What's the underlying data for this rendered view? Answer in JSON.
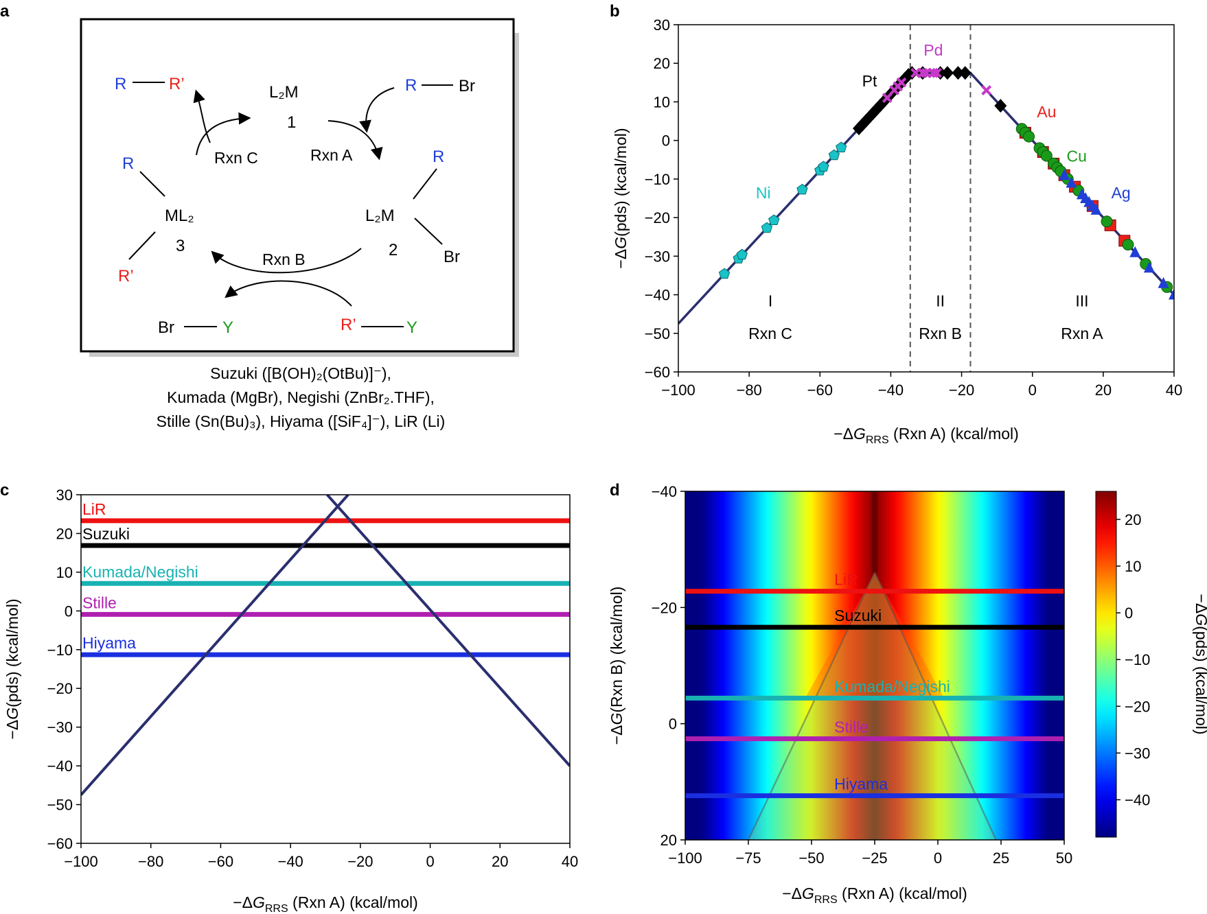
{
  "colors": {
    "R": "#1f3fd6",
    "Rp": "#e8201a",
    "Y": "#1a9a1a",
    "Br": "#000000",
    "line": "#2b2f6e",
    "Ni": "#19c3c8",
    "Pt": "#000000",
    "Pd": "#c53ac6",
    "Au": "#e8201a",
    "Cu": "#1a9a1a",
    "Ag": "#1f3fd6",
    "LiR": "#ee1111",
    "Suzuki": "#000000",
    "Kumada/Negishi": "#18b2b2",
    "Stille": "#b020b0",
    "Hiyama": "#1a2fe0"
  },
  "panels": {
    "a": {
      "label": "a",
      "scheme": {
        "L2M": "L₂M",
        "one": "1",
        "two": "2",
        "three": "3",
        "ML2": "ML₂",
        "R": "R",
        "Rp": "R’",
        "Br": "Br",
        "Y": "Y",
        "rxnA": "Rxn A",
        "rxnB": "Rxn B",
        "rxnC": "Rxn C"
      },
      "caption": [
        "Suzuki ([B(OH)₂(OtBu)]⁻),",
        "Kumada (MgBr), Negishi (ZnBr₂.THF),",
        "Stille (Sn(Bu)₃), Hiyama ([SiF₄]⁻), LiR (Li)"
      ]
    },
    "b": {
      "label": "b"
    },
    "c": {
      "label": "c"
    },
    "d": {
      "label": "d"
    }
  },
  "chart_data": [
    {
      "id": "b",
      "type": "scatter",
      "xlabel": "−ΔG_RRS (Rxn A) (kcal/mol)",
      "ylabel": "−ΔG(pds) (kcal/mol)",
      "xlim": [
        -100,
        40
      ],
      "ylim": [
        -60,
        30
      ],
      "xticks": [
        -100,
        -80,
        -60,
        -40,
        -20,
        0,
        20,
        40
      ],
      "yticks": [
        -60,
        -50,
        -40,
        -30,
        -20,
        -10,
        0,
        10,
        20,
        30
      ],
      "volcano": {
        "x": [
          -100,
          -34.5,
          -17.5,
          40
        ],
        "y": [
          -47.5,
          17.5,
          17.5,
          -40
        ]
      },
      "boundaries": [
        -34.5,
        -17.5
      ],
      "regions": [
        {
          "roman": "I",
          "rxn": "Rxn C",
          "x": -74
        },
        {
          "roman": "II",
          "rxn": "Rxn B",
          "x": -26
        },
        {
          "roman": "III",
          "rxn": "Rxn A",
          "x": 14
        }
      ],
      "series": [
        {
          "name": "Ni",
          "marker": "pentagon",
          "x": [
            -87,
            -83,
            -82,
            -75,
            -73,
            -65,
            -60,
            -59,
            -56,
            -54
          ],
          "label_at": [
            -76,
            -15
          ]
        },
        {
          "name": "Pt",
          "marker": "diamond",
          "x": [
            -49,
            -48,
            -47,
            -46,
            -45,
            -44,
            -43,
            -42,
            -40,
            -38,
            -37,
            -36,
            -35,
            -34,
            -31,
            -26,
            -24,
            -21,
            -19,
            -9
          ],
          "label_at": [
            -46,
            14
          ]
        },
        {
          "name": "Pd",
          "marker": "cross",
          "x": [
            -41,
            -39,
            -38,
            -37,
            -33,
            -31,
            -30,
            -28,
            -27,
            -13
          ],
          "label_at": [
            -28,
            22
          ]
        },
        {
          "name": "Au",
          "marker": "square",
          "x": [
            -2,
            3,
            6,
            9,
            12,
            17,
            22,
            26
          ],
          "label_at": [
            4,
            6
          ]
        },
        {
          "name": "Cu",
          "marker": "circle",
          "x": [
            -3,
            -2,
            -1,
            2,
            3,
            4,
            6,
            7,
            8,
            10,
            13,
            21,
            27,
            32,
            38
          ],
          "label_at": [
            12.5,
            -5.5
          ]
        },
        {
          "name": "Ag",
          "marker": "triangle",
          "x": [
            9,
            11,
            14,
            15,
            16,
            17,
            18,
            29,
            33,
            37,
            40
          ],
          "label_at": [
            25,
            -15
          ]
        }
      ]
    },
    {
      "id": "c",
      "type": "line",
      "xlabel": "−ΔG_RRS (Rxn A) (kcal/mol)",
      "ylabel": "−ΔG(pds) (kcal/mol)",
      "xlim": [
        -100,
        40
      ],
      "ylim": [
        -60,
        30
      ],
      "xticks": [
        -100,
        -80,
        -60,
        -40,
        -20,
        0,
        20,
        40
      ],
      "yticks": [
        -60,
        -50,
        -40,
        -30,
        -20,
        -10,
        0,
        10,
        20,
        30
      ],
      "lines": [
        {
          "name": "Rxn C",
          "x": [
            -100,
            -23.5
          ],
          "y": [
            -47.5,
            30
          ]
        },
        {
          "name": "Rxn A",
          "x": [
            -29.5,
            40
          ],
          "y": [
            30,
            -40
          ]
        }
      ],
      "series": [
        {
          "name": "LiR",
          "y": 23.3
        },
        {
          "name": "Suzuki",
          "y": 16.9
        },
        {
          "name": "Kumada/Negishi",
          "y": 7.1
        },
        {
          "name": "Stille",
          "y": -0.9
        },
        {
          "name": "Hiyama",
          "y": -11.3
        }
      ]
    },
    {
      "id": "d",
      "type": "heatmap",
      "xlabel": "−ΔG_RRS (Rxn A) (kcal/mol)",
      "ylabel": "−ΔG(Rxn B) (kcal/mol)",
      "colorbar_label": "−ΔG(pds) (kcal/mol)",
      "xlim": [
        -100,
        50
      ],
      "ylim": [
        20,
        -40
      ],
      "xticks": [
        -100,
        -75,
        -50,
        -25,
        0,
        25,
        50
      ],
      "yticks": [
        -40,
        -20,
        0,
        20
      ],
      "colorbar_ticks": [
        20,
        10,
        0,
        -10,
        -20,
        -30,
        -40
      ],
      "colorbar_range": [
        -48,
        26
      ],
      "series": [
        {
          "name": "LiR",
          "y": -22.8
        },
        {
          "name": "Suzuki",
          "y": -16.6
        },
        {
          "name": "Kumada/Negishi",
          "y": -4.4
        },
        {
          "name": "Stille",
          "y": 2.6
        },
        {
          "name": "Hiyama",
          "y": 12.4
        }
      ]
    }
  ]
}
